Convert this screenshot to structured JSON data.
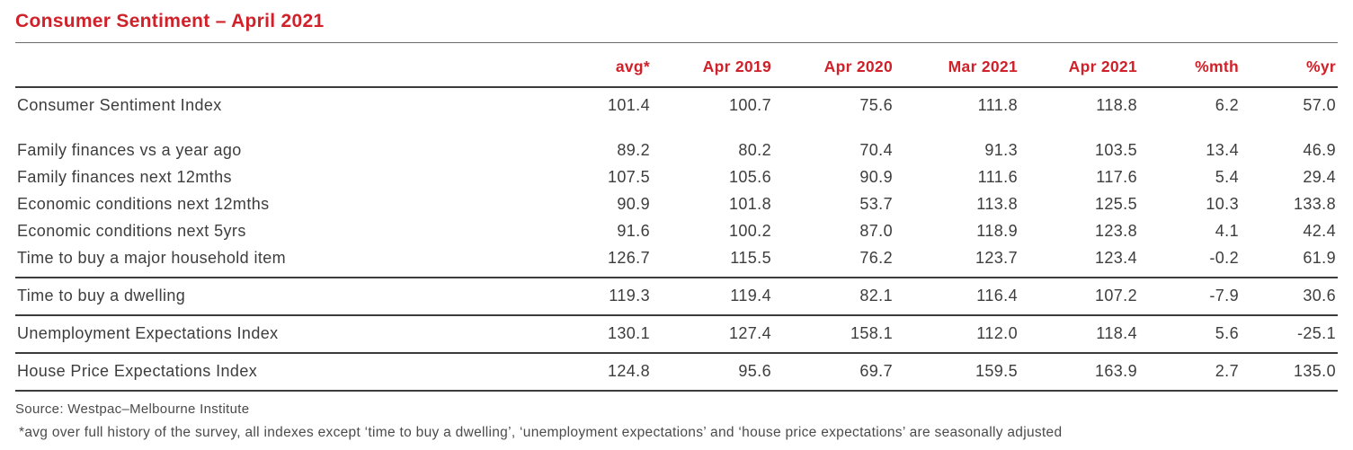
{
  "colors": {
    "accent": "#d0212a",
    "text": "#3d3d3d",
    "line": "#3c3c3c",
    "muted": "#4b4b4b"
  },
  "chart_data": {
    "type": "table",
    "title": "Consumer Sentiment – April 2021",
    "columns": [
      "avg*",
      "Apr 2019",
      "Apr 2020",
      "Mar 2021",
      "Apr 2021",
      "%mth",
      "%yr"
    ],
    "sections": [
      {
        "rows": [
          {
            "label": "Consumer Sentiment Index",
            "values": [
              "101.4",
              "100.7",
              "75.6",
              "111.8",
              "118.8",
              "6.2",
              "57.0"
            ]
          }
        ]
      },
      {
        "rows": [
          {
            "label": "Family finances vs a year ago",
            "values": [
              "89.2",
              "80.2",
              "70.4",
              "91.3",
              "103.5",
              "13.4",
              "46.9"
            ]
          },
          {
            "label": "Family finances next 12mths",
            "values": [
              "107.5",
              "105.6",
              "90.9",
              "111.6",
              "117.6",
              "5.4",
              "29.4"
            ]
          },
          {
            "label": "Economic conditions next 12mths",
            "values": [
              "90.9",
              "101.8",
              "53.7",
              "113.8",
              "125.5",
              "10.3",
              "133.8"
            ]
          },
          {
            "label": "Economic conditions next 5yrs",
            "values": [
              "91.6",
              "100.2",
              "87.0",
              "118.9",
              "123.8",
              "4.1",
              "42.4"
            ]
          },
          {
            "label": "Time to buy a major household item",
            "values": [
              "126.7",
              "115.5",
              "76.2",
              "123.7",
              "123.4",
              "-0.2",
              "61.9"
            ]
          }
        ]
      },
      {
        "rows": [
          {
            "label": "Time to buy a dwelling",
            "values": [
              "119.3",
              "119.4",
              "82.1",
              "116.4",
              "107.2",
              "-7.9",
              "30.6"
            ]
          }
        ]
      },
      {
        "rows": [
          {
            "label": "Unemployment Expectations Index",
            "values": [
              "130.1",
              "127.4",
              "158.1",
              "112.0",
              "118.4",
              "5.6",
              "-25.1"
            ]
          }
        ]
      },
      {
        "rows": [
          {
            "label": "House Price Expectations Index",
            "values": [
              "124.8",
              "95.6",
              "69.7",
              "159.5",
              "163.9",
              "2.7",
              "135.0"
            ]
          }
        ]
      }
    ],
    "source": "Source: Westpac–Melbourne Institute",
    "footnote": "*avg over full history of the survey, all indexes except ‘time to buy a dwelling’, ‘unemployment expectations’ and ‘house price expectations’ are seasonally adjusted"
  }
}
